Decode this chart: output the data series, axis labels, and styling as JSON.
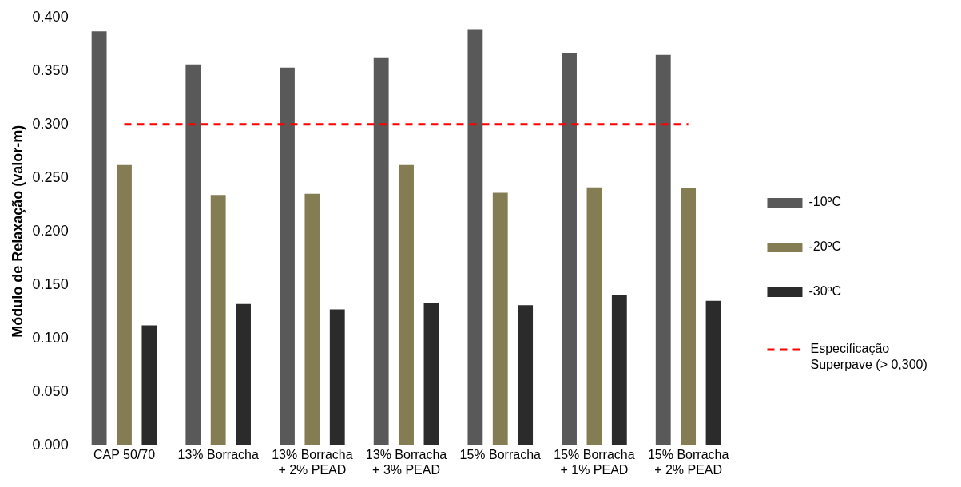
{
  "chart_data": {
    "type": "bar",
    "ylabel": "Módulo de Relaxação (valor-m)",
    "categories": [
      "CAP 50/70",
      "13% Borracha",
      "13% Borracha + 2% PEAD",
      "13% Borracha + 3% PEAD",
      "15% Borracha",
      "15% Borracha + 1% PEAD",
      "15% Borracha + 2% PEAD"
    ],
    "series": [
      {
        "name": "-10ºC",
        "color": "#595959",
        "values": [
          0.387,
          0.356,
          0.353,
          0.362,
          0.389,
          0.367,
          0.365
        ]
      },
      {
        "name": "-20ºC",
        "color": "#847c52",
        "values": [
          0.262,
          0.234,
          0.235,
          0.262,
          0.236,
          0.241,
          0.24
        ]
      },
      {
        "name": "-30ºC",
        "color": "#2b2b2b",
        "values": [
          0.112,
          0.132,
          0.127,
          0.133,
          0.131,
          0.14,
          0.135
        ]
      }
    ],
    "ylim": [
      0,
      0.4
    ],
    "yticks": [
      {
        "value": 0,
        "label": "0.000"
      },
      {
        "value": 0.05,
        "label": "0.050"
      },
      {
        "value": 0.1,
        "label": "0.100"
      },
      {
        "value": 0.15,
        "label": "0.150"
      },
      {
        "value": 0.2,
        "label": "0.200"
      },
      {
        "value": 0.25,
        "label": "0.250"
      },
      {
        "value": 0.3,
        "label": "0.300"
      },
      {
        "value": 0.35,
        "label": "0.350"
      },
      {
        "value": 0.4,
        "label": "0.400"
      }
    ],
    "ref_lines": [
      {
        "axis": "y",
        "value": 0.3,
        "label": "Especificação Superpave (> 0,300)",
        "color": "#ff0000",
        "line_style": "dashed"
      }
    ],
    "grid": false,
    "legend": "right"
  }
}
